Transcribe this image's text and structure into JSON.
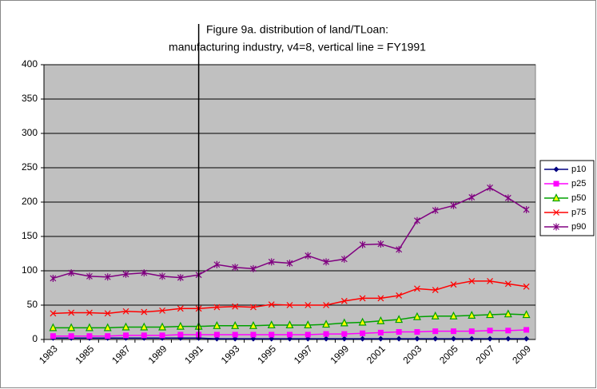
{
  "chart_data": {
    "type": "line",
    "title": [
      "Figure 9a. distribution of land/TLoan:",
      "manufacturing industry, v4=8, vertical line = FY1991"
    ],
    "categories": [
      "1983",
      null,
      "1985",
      null,
      "1987",
      null,
      "1989",
      null,
      "1991",
      null,
      "1993",
      null,
      "1995",
      null,
      "1997",
      null,
      "1999",
      null,
      "2001",
      null,
      "2003",
      null,
      "2005",
      null,
      "2007",
      null,
      "2009"
    ],
    "vline_at": "1991",
    "series": [
      {
        "name": "p10",
        "color": "#000080",
        "marker": "diamond",
        "values": [
          2,
          2,
          2,
          2,
          2,
          2,
          2,
          2,
          2,
          1,
          1,
          1,
          1,
          1,
          1,
          1,
          1,
          1,
          1,
          1,
          1,
          1,
          1,
          1,
          1,
          1,
          1
        ]
      },
      {
        "name": "p25",
        "color": "#ff00ff",
        "marker": "square",
        "values": [
          5,
          5,
          5,
          5,
          6,
          6,
          6,
          7,
          7,
          7,
          7,
          7,
          7,
          7,
          7,
          8,
          8,
          9,
          10,
          11,
          11,
          12,
          12,
          12,
          13,
          13,
          14
        ]
      },
      {
        "name": "p50",
        "color": "#00a000",
        "marker": "triangle",
        "values": [
          17,
          17,
          17,
          17,
          18,
          18,
          18,
          19,
          19,
          20,
          20,
          20,
          21,
          21,
          21,
          22,
          24,
          25,
          27,
          29,
          33,
          34,
          34,
          35,
          36,
          37,
          36
        ]
      },
      {
        "name": "p75",
        "color": "#ff0000",
        "marker": "x",
        "values": [
          38,
          39,
          39,
          38,
          41,
          40,
          42,
          45,
          45,
          47,
          48,
          47,
          51,
          50,
          50,
          50,
          56,
          60,
          60,
          64,
          74,
          72,
          80,
          85,
          85,
          81,
          77
        ]
      },
      {
        "name": "p90",
        "color": "#800080",
        "marker": "star",
        "values": [
          89,
          97,
          92,
          91,
          95,
          97,
          92,
          90,
          94,
          109,
          105,
          103,
          113,
          111,
          122,
          113,
          117,
          138,
          139,
          131,
          173,
          188,
          195,
          207,
          221,
          206,
          189
        ]
      }
    ],
    "ylim": [
      0,
      400
    ],
    "yticks": [
      0,
      50,
      100,
      150,
      200,
      250,
      300,
      350,
      400
    ],
    "grid": true,
    "plot_background": "#c0c0c0",
    "legend": "right"
  }
}
